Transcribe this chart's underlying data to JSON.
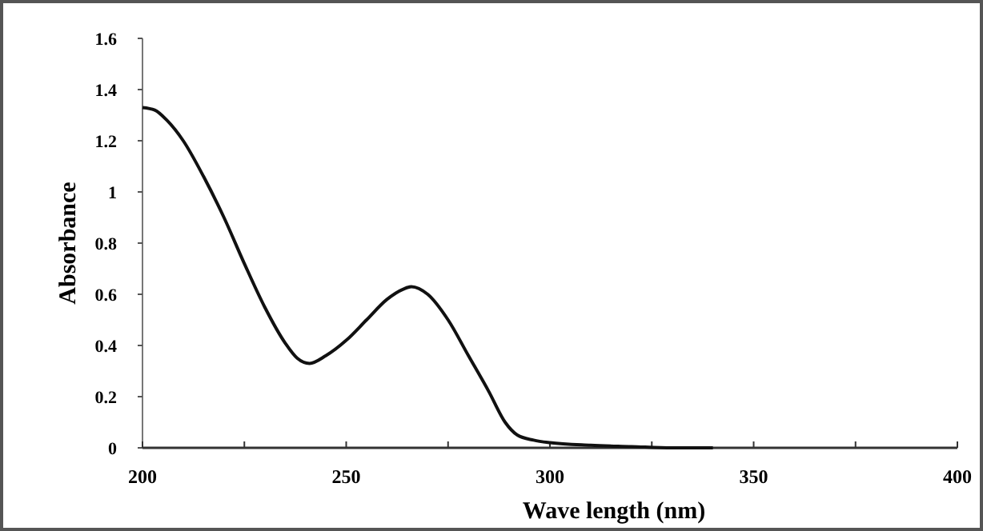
{
  "chart_data": {
    "type": "line",
    "xlabel": "Wave length (nm)",
    "ylabel": "Absorbance",
    "x": [
      200,
      203,
      206,
      210,
      215,
      220,
      225,
      230,
      235,
      238,
      241,
      245,
      250,
      255,
      260,
      264,
      266,
      270,
      275,
      280,
      285,
      289,
      292,
      296,
      300,
      310,
      320,
      330,
      340
    ],
    "series": [
      {
        "color": "#111111",
        "values": [
          1.33,
          1.32,
          1.28,
          1.2,
          1.06,
          0.9,
          0.72,
          0.55,
          0.41,
          0.35,
          0.33,
          0.36,
          0.42,
          0.5,
          0.58,
          0.62,
          0.63,
          0.6,
          0.5,
          0.36,
          0.22,
          0.1,
          0.05,
          0.03,
          0.02,
          0.01,
          0.005,
          0,
          0
        ]
      }
    ],
    "xlim": [
      200,
      400
    ],
    "xticks": [
      200,
      {
        "value": 225,
        "label": null
      },
      250,
      {
        "value": 275,
        "label": null
      },
      300,
      {
        "value": 325,
        "label": null
      },
      350,
      {
        "value": 375,
        "label": null
      },
      400
    ],
    "ylim": [
      0,
      1.6
    ],
    "yticks": [
      0,
      0.2,
      0.4,
      0.6,
      0.8,
      1,
      1.2,
      1.4,
      1.6
    ],
    "grid": false,
    "marker": "none",
    "line_style": "solid"
  }
}
